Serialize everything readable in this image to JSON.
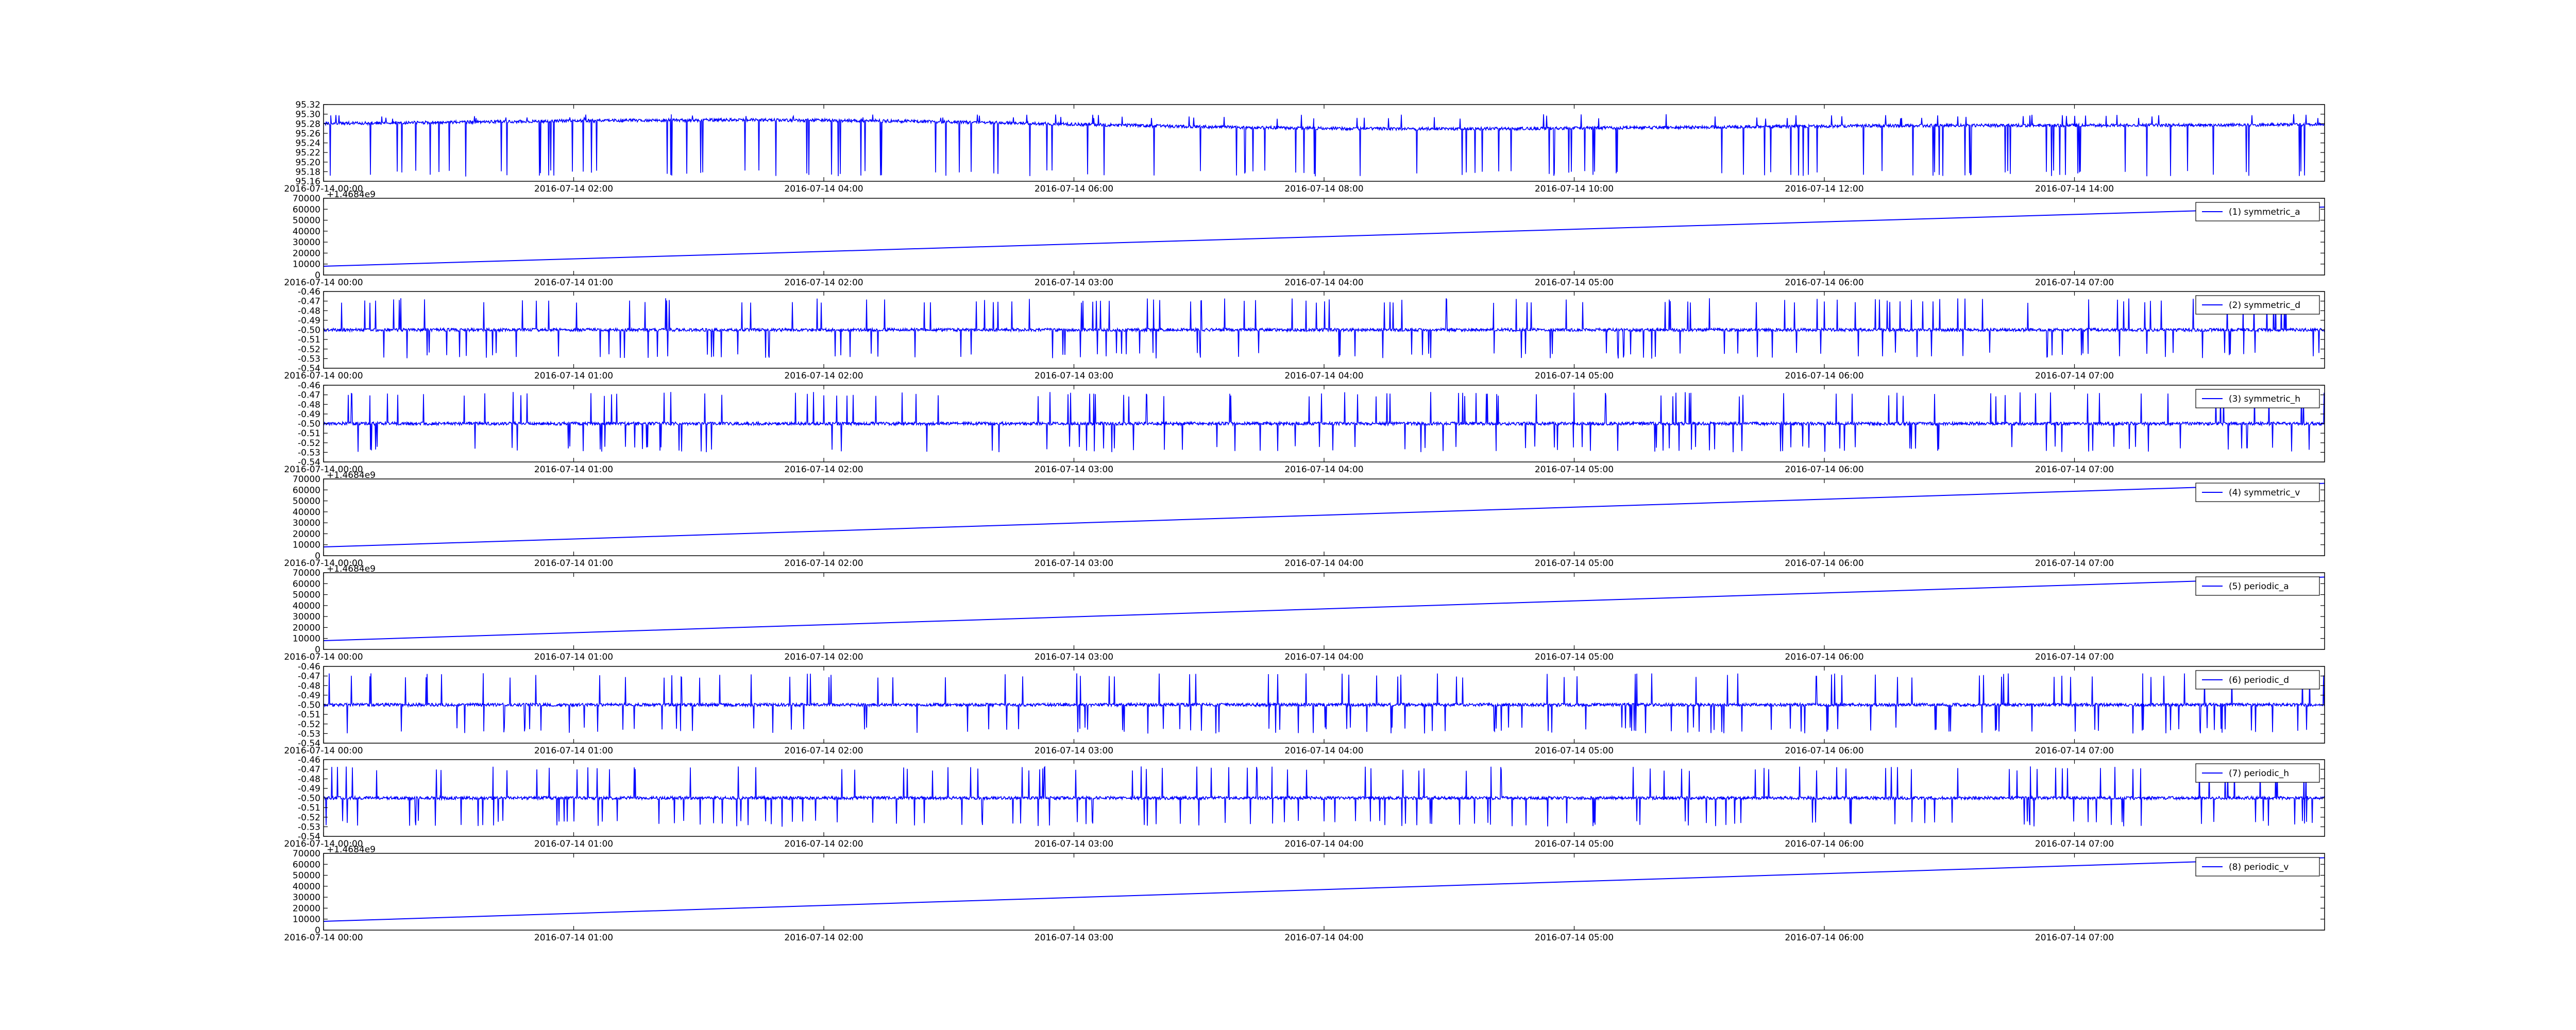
{
  "figure": {
    "background": "#ffffff",
    "line_color": "#0000ff",
    "axes_color": "#000000"
  },
  "chart_data": [
    {
      "type": "line",
      "series": [
        {
          "pattern": "noisy",
          "base": 95.27,
          "drift": "wave",
          "spike_down_to": 95.17,
          "spike_up_to": 95.3
        }
      ],
      "yticks": [
        "95.16",
        "95.18",
        "95.20",
        "95.22",
        "95.24",
        "95.26",
        "95.28",
        "95.30",
        "95.32"
      ],
      "ylim": [
        95.16,
        95.32
      ],
      "xticks": [
        "2016-07-14 00:00",
        "2016-07-14 02:00",
        "2016-07-14 04:00",
        "2016-07-14 06:00",
        "2016-07-14 08:00",
        "2016-07-14 10:00",
        "2016-07-14 12:00",
        "2016-07-14 14:00"
      ],
      "offset_label": "",
      "legend": "",
      "grid": false
    },
    {
      "type": "line",
      "series": [
        {
          "name": "(1) symmetric_a",
          "pattern": "linear",
          "y_start": 8000,
          "y_end": 62000
        }
      ],
      "yticks": [
        "0",
        "10000",
        "20000",
        "30000",
        "40000",
        "50000",
        "60000",
        "70000"
      ],
      "ylim": [
        0,
        70000
      ],
      "xticks": [
        "2016-07-14 00:00",
        "2016-07-14 01:00",
        "2016-07-14 02:00",
        "2016-07-14 03:00",
        "2016-07-14 04:00",
        "2016-07-14 05:00",
        "2016-07-14 06:00",
        "2016-07-14 07:00"
      ],
      "offset_label": "+1.4684e9",
      "legend": "top-right",
      "grid": false
    },
    {
      "type": "line",
      "series": [
        {
          "name": "(2) symmetric_d",
          "pattern": "noisy",
          "base": -0.5,
          "spike_up_to": -0.467,
          "spike_down_to": -0.53
        }
      ],
      "yticks": [
        "-0.54",
        "-0.53",
        "-0.52",
        "-0.51",
        "-0.50",
        "-0.49",
        "-0.48",
        "-0.47",
        "-0.46"
      ],
      "ylim": [
        -0.54,
        -0.46
      ],
      "xticks": [
        "2016-07-14 00:00",
        "2016-07-14 01:00",
        "2016-07-14 02:00",
        "2016-07-14 03:00",
        "2016-07-14 04:00",
        "2016-07-14 05:00",
        "2016-07-14 06:00",
        "2016-07-14 07:00"
      ],
      "offset_label": "",
      "legend": "top-right",
      "grid": false
    },
    {
      "type": "line",
      "series": [
        {
          "name": "(3) symmetric_h",
          "pattern": "noisy",
          "base": -0.5,
          "spike_up_to": -0.467,
          "spike_down_to": -0.53
        }
      ],
      "yticks": [
        "-0.54",
        "-0.53",
        "-0.52",
        "-0.51",
        "-0.50",
        "-0.49",
        "-0.48",
        "-0.47",
        "-0.46"
      ],
      "ylim": [
        -0.54,
        -0.46
      ],
      "xticks": [
        "2016-07-14 00:00",
        "2016-07-14 01:00",
        "2016-07-14 02:00",
        "2016-07-14 03:00",
        "2016-07-14 04:00",
        "2016-07-14 05:00",
        "2016-07-14 06:00",
        "2016-07-14 07:00"
      ],
      "offset_label": "",
      "legend": "top-right",
      "grid": false
    },
    {
      "type": "line",
      "series": [
        {
          "name": "(4) symmetric_v",
          "pattern": "linear",
          "y_start": 8000,
          "y_end": 66000
        }
      ],
      "yticks": [
        "0",
        "10000",
        "20000",
        "30000",
        "40000",
        "50000",
        "60000",
        "70000"
      ],
      "ylim": [
        0,
        70000
      ],
      "xticks": [
        "2016-07-14 00:00",
        "2016-07-14 01:00",
        "2016-07-14 02:00",
        "2016-07-14 03:00",
        "2016-07-14 04:00",
        "2016-07-14 05:00",
        "2016-07-14 06:00",
        "2016-07-14 07:00"
      ],
      "offset_label": "+1.4684e9",
      "legend": "top-right",
      "grid": false
    },
    {
      "type": "line",
      "series": [
        {
          "name": "(5) periodic_a",
          "pattern": "linear",
          "y_start": 8000,
          "y_end": 66000
        }
      ],
      "yticks": [
        "0",
        "10000",
        "20000",
        "30000",
        "40000",
        "50000",
        "60000",
        "70000"
      ],
      "ylim": [
        0,
        70000
      ],
      "xticks": [
        "2016-07-14 00:00",
        "2016-07-14 01:00",
        "2016-07-14 02:00",
        "2016-07-14 03:00",
        "2016-07-14 04:00",
        "2016-07-14 05:00",
        "2016-07-14 06:00",
        "2016-07-14 07:00"
      ],
      "offset_label": "+1.4684e9",
      "legend": "top-right",
      "grid": false
    },
    {
      "type": "line",
      "series": [
        {
          "name": "(6) periodic_d",
          "pattern": "noisy",
          "base": -0.5,
          "spike_up_to": -0.467,
          "spike_down_to": -0.53
        }
      ],
      "yticks": [
        "-0.54",
        "-0.53",
        "-0.52",
        "-0.51",
        "-0.50",
        "-0.49",
        "-0.48",
        "-0.47",
        "-0.46"
      ],
      "ylim": [
        -0.54,
        -0.46
      ],
      "xticks": [
        "2016-07-14 00:00",
        "2016-07-14 01:00",
        "2016-07-14 02:00",
        "2016-07-14 03:00",
        "2016-07-14 04:00",
        "2016-07-14 05:00",
        "2016-07-14 06:00",
        "2016-07-14 07:00"
      ],
      "offset_label": "",
      "legend": "top-right",
      "grid": false
    },
    {
      "type": "line",
      "series": [
        {
          "name": "(7) periodic_h",
          "pattern": "noisy",
          "base": -0.5,
          "spike_up_to": -0.467,
          "spike_down_to": -0.53
        }
      ],
      "yticks": [
        "-0.54",
        "-0.53",
        "-0.52",
        "-0.51",
        "-0.50",
        "-0.49",
        "-0.48",
        "-0.47",
        "-0.46"
      ],
      "ylim": [
        -0.54,
        -0.46
      ],
      "xticks": [
        "2016-07-14 00:00",
        "2016-07-14 01:00",
        "2016-07-14 02:00",
        "2016-07-14 03:00",
        "2016-07-14 04:00",
        "2016-07-14 05:00",
        "2016-07-14 06:00",
        "2016-07-14 07:00"
      ],
      "offset_label": "",
      "legend": "top-right",
      "grid": false
    },
    {
      "type": "line",
      "series": [
        {
          "name": "(8) periodic_v",
          "pattern": "linear",
          "y_start": 8000,
          "y_end": 66000
        }
      ],
      "yticks": [
        "0",
        "10000",
        "20000",
        "30000",
        "40000",
        "50000",
        "60000",
        "70000"
      ],
      "ylim": [
        0,
        70000
      ],
      "xticks": [
        "2016-07-14 00:00",
        "2016-07-14 01:00",
        "2016-07-14 02:00",
        "2016-07-14 03:00",
        "2016-07-14 04:00",
        "2016-07-14 05:00",
        "2016-07-14 06:00",
        "2016-07-14 07:00"
      ],
      "offset_label": "+1.4684e9",
      "legend": "top-right",
      "grid": false
    }
  ]
}
